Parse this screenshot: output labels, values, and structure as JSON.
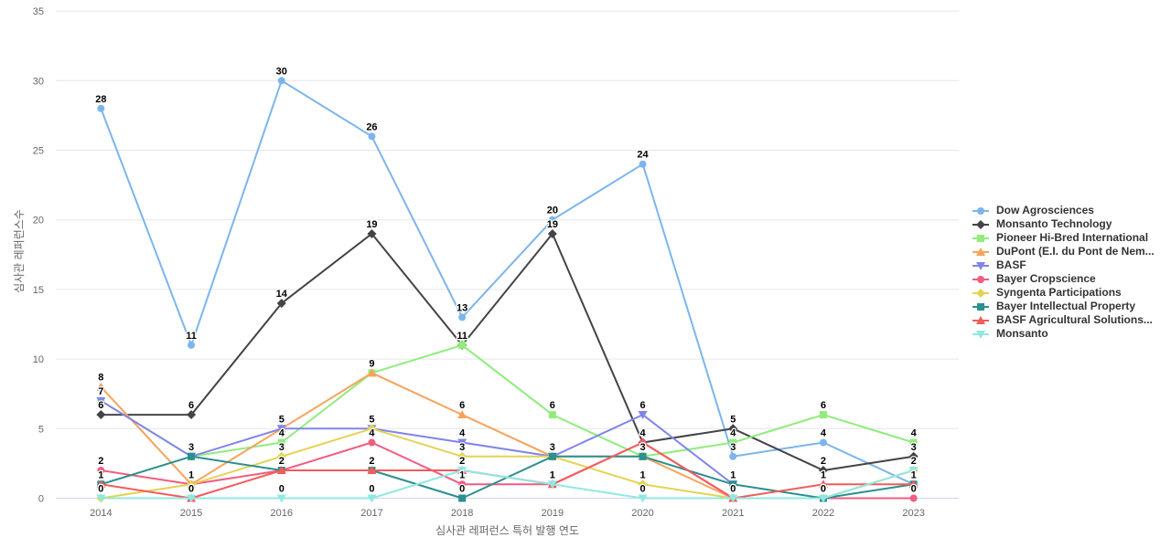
{
  "chart_data": {
    "type": "line",
    "x": [
      "2014",
      "2015",
      "2016",
      "2017",
      "2018",
      "2019",
      "2020",
      "2021",
      "2022",
      "2023"
    ],
    "xlabel": "심사관 레퍼런스 특허 발행 연도",
    "ylabel": "심사관 레퍼런스수",
    "ylim": [
      0,
      35
    ],
    "yticks": [
      0,
      5,
      10,
      15,
      20,
      25,
      30,
      35
    ],
    "grid": "horizontal",
    "legend_position": "right",
    "data_labels": true,
    "series": [
      {
        "name": "Dow Agrosciences",
        "color": "#7cb5ec",
        "marker": "circle",
        "values": [
          28,
          11,
          30,
          26,
          13,
          20,
          24,
          3,
          4,
          1
        ]
      },
      {
        "name": "Monsanto Technology",
        "color": "#434348",
        "marker": "diamond",
        "values": [
          6,
          6,
          14,
          19,
          11,
          19,
          4,
          5,
          2,
          3
        ]
      },
      {
        "name": "Pioneer Hi-Bred International",
        "color": "#90ed7d",
        "marker": "square",
        "values": [
          7,
          3,
          4,
          9,
          11,
          6,
          3,
          4,
          6,
          4
        ]
      },
      {
        "name": "DuPont (E.I. du Pont de Nem...",
        "color": "#f7a35c",
        "marker": "triangle",
        "values": [
          8,
          1,
          5,
          9,
          6,
          3,
          3,
          0,
          null,
          null
        ]
      },
      {
        "name": "BASF",
        "color": "#8085e9",
        "marker": "triangle-down",
        "values": [
          7,
          3,
          5,
          5,
          4,
          3,
          6,
          1,
          null,
          null
        ]
      },
      {
        "name": "Bayer Cropscience",
        "color": "#f15c80",
        "marker": "circle",
        "values": [
          2,
          1,
          2,
          4,
          1,
          1,
          4,
          0,
          0,
          0
        ]
      },
      {
        "name": "Syngenta Participations",
        "color": "#e4d354",
        "marker": "diamond",
        "values": [
          0,
          1,
          3,
          5,
          3,
          3,
          1,
          0,
          0,
          2
        ]
      },
      {
        "name": "Bayer Intellectual Property",
        "color": "#2b908f",
        "marker": "square",
        "values": [
          1,
          3,
          2,
          2,
          0,
          3,
          3,
          1,
          0,
          1
        ]
      },
      {
        "name": "BASF Agricultural Solutions...",
        "color": "#f45b5b",
        "marker": "triangle",
        "values": [
          1,
          0,
          2,
          2,
          2,
          1,
          4,
          0,
          1,
          1
        ]
      },
      {
        "name": "Monsanto",
        "color": "#91e8e1",
        "marker": "triangle-down",
        "values": [
          0,
          0,
          0,
          0,
          2,
          1,
          0,
          0,
          0,
          2
        ]
      }
    ],
    "styles": {
      "grid_color": "#e6e6e6",
      "axis_line_color": "#ccd6eb",
      "tick_label_color": "#666666",
      "data_label_color": "#000000",
      "legend_text_color": "#333333"
    }
  }
}
